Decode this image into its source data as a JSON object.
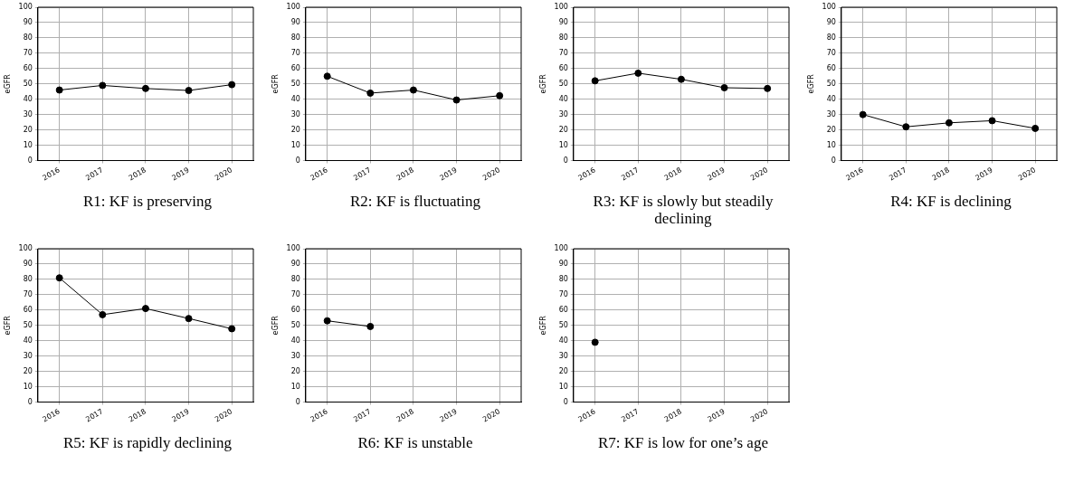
{
  "chart_data": [
    {
      "type": "line",
      "title": "R1: KF is preserving",
      "ylabel": "eGFR",
      "categories": [
        "2016",
        "2017",
        "2018",
        "2019",
        "2020"
      ],
      "values": [
        46,
        49,
        47,
        45.7,
        49.5
      ],
      "color": "#000000",
      "ylim": [
        0,
        100
      ],
      "yticks": [
        0,
        10,
        20,
        30,
        40,
        50,
        60,
        70,
        80,
        90,
        100
      ],
      "grid": true,
      "marker": "circle"
    },
    {
      "type": "line",
      "title": "R2: KF is fluctuating",
      "ylabel": "eGFR",
      "categories": [
        "2016",
        "2017",
        "2018",
        "2019",
        "2020"
      ],
      "values": [
        55,
        44,
        46,
        39.5,
        42.3
      ],
      "color": "#000000",
      "ylim": [
        0,
        100
      ],
      "yticks": [
        0,
        10,
        20,
        30,
        40,
        50,
        60,
        70,
        80,
        90,
        100
      ],
      "grid": true,
      "marker": "circle"
    },
    {
      "type": "line",
      "title": "R3: KF is slowly but steadily declining",
      "ylabel": "eGFR",
      "categories": [
        "2016",
        "2017",
        "2018",
        "2019",
        "2020"
      ],
      "values": [
        52,
        57,
        53,
        47.5,
        47
      ],
      "color": "#000000",
      "ylim": [
        0,
        100
      ],
      "yticks": [
        0,
        10,
        20,
        30,
        40,
        50,
        60,
        70,
        80,
        90,
        100
      ],
      "grid": true,
      "marker": "circle"
    },
    {
      "type": "line",
      "title": "R4: KF is declining",
      "ylabel": "eGFR",
      "categories": [
        "2016",
        "2017",
        "2018",
        "2019",
        "2020"
      ],
      "values": [
        30,
        22,
        24.6,
        26,
        21
      ],
      "color": "#000000",
      "ylim": [
        0,
        100
      ],
      "yticks": [
        0,
        10,
        20,
        30,
        40,
        50,
        60,
        70,
        80,
        90,
        100
      ],
      "grid": true,
      "marker": "circle"
    },
    {
      "type": "line",
      "title": "R5: KF is rapidly declining",
      "ylabel": "eGFR",
      "categories": [
        "2016",
        "2017",
        "2018",
        "2019",
        "2020"
      ],
      "values": [
        81,
        57,
        61,
        54.5,
        47.8
      ],
      "color": "#000000",
      "ylim": [
        0,
        100
      ],
      "yticks": [
        0,
        10,
        20,
        30,
        40,
        50,
        60,
        70,
        80,
        90,
        100
      ],
      "grid": true,
      "marker": "circle"
    },
    {
      "type": "line",
      "title": "R6: KF is unstable",
      "ylabel": "eGFR",
      "categories": [
        "2016",
        "2017",
        "2018",
        "2019",
        "2020"
      ],
      "values": [
        53,
        49.3,
        null,
        null,
        null
      ],
      "color": "#000000",
      "ylim": [
        0,
        100
      ],
      "yticks": [
        0,
        10,
        20,
        30,
        40,
        50,
        60,
        70,
        80,
        90,
        100
      ],
      "grid": true,
      "marker": "circle"
    },
    {
      "type": "line",
      "title": "R7: KF is low for one’s age",
      "ylabel": "eGFR",
      "categories": [
        "2016",
        "2017",
        "2018",
        "2019",
        "2020"
      ],
      "values": [
        39,
        null,
        null,
        null,
        null
      ],
      "color": "#000000",
      "ylim": [
        0,
        100
      ],
      "yticks": [
        0,
        10,
        20,
        30,
        40,
        50,
        60,
        70,
        80,
        90,
        100
      ],
      "grid": true,
      "marker": "circle"
    }
  ]
}
